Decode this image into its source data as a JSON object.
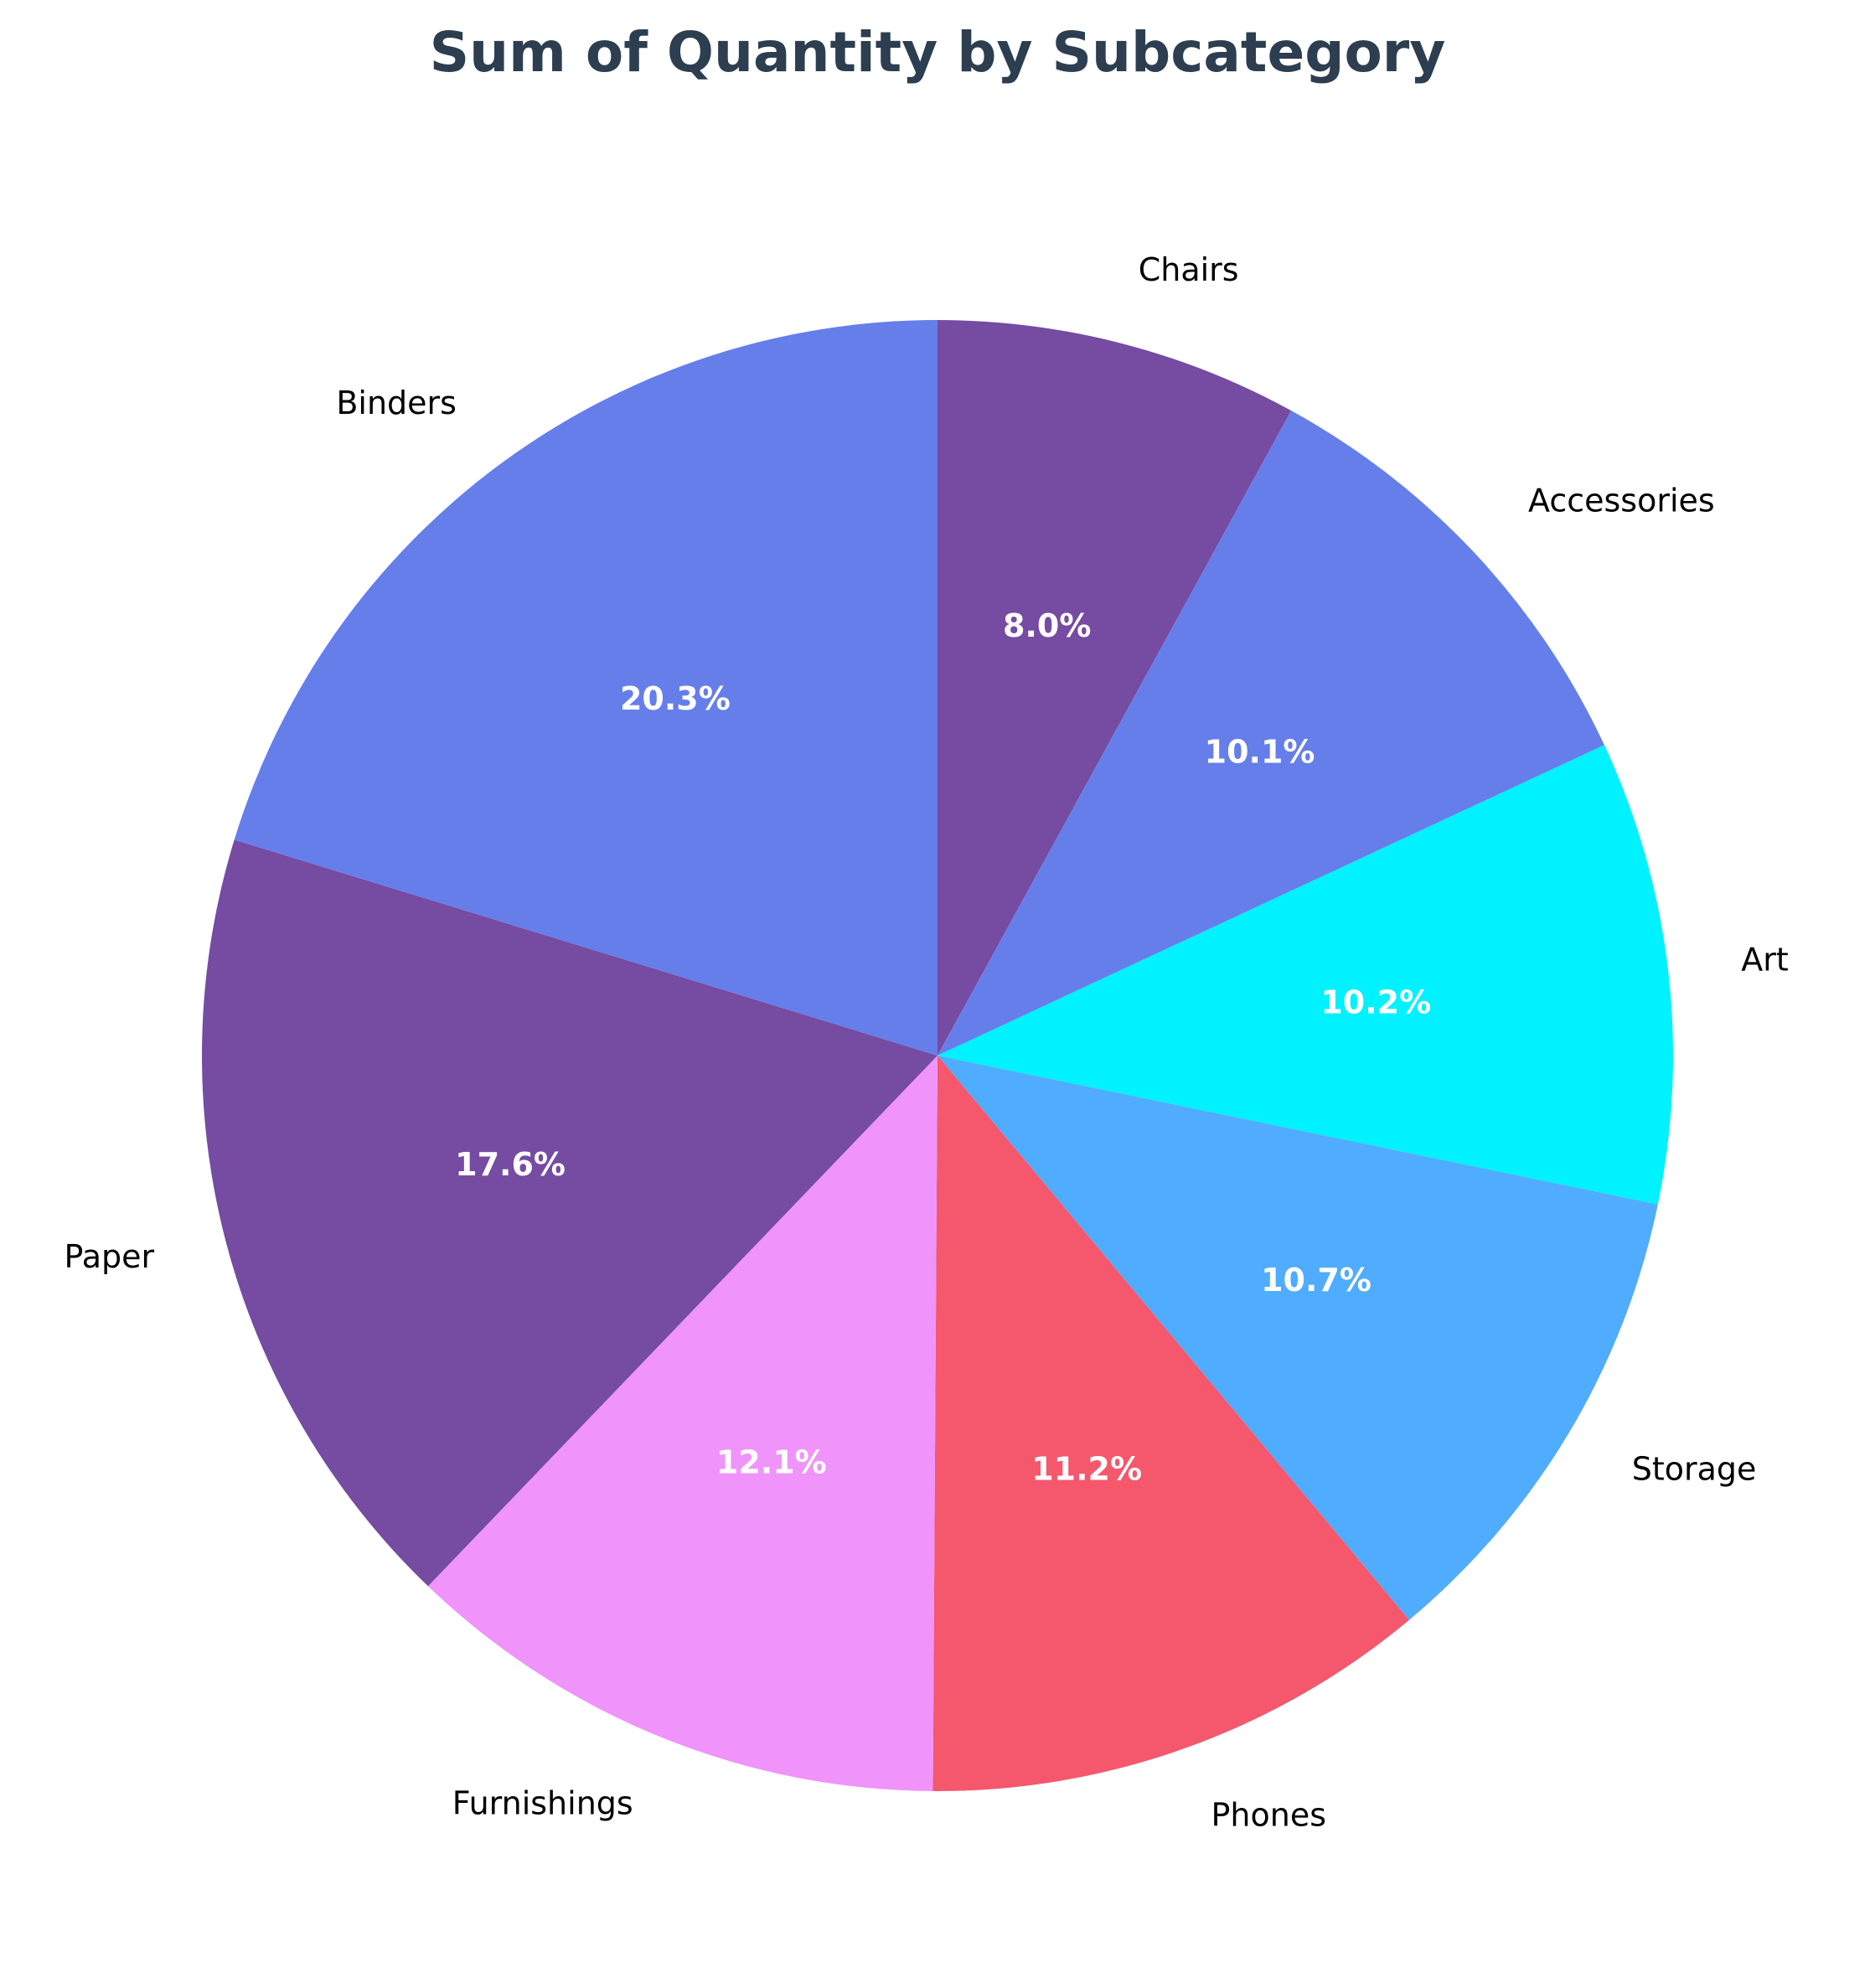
{
  "chart_data": {
    "type": "pie",
    "title": "Sum of Quantity by Subcategory",
    "start_angle_deg": 90,
    "direction": "clockwise",
    "slices": [
      {
        "label": "Chairs",
        "percent": 8.0,
        "percent_label": "8.0%",
        "color": "#764ba2"
      },
      {
        "label": "Accessories",
        "percent": 10.1,
        "percent_label": "10.1%",
        "color": "#667eea"
      },
      {
        "label": "Art",
        "percent": 10.2,
        "percent_label": "10.2%",
        "color": "#00f2fe"
      },
      {
        "label": "Storage",
        "percent": 10.7,
        "percent_label": "10.7%",
        "color": "#4facfe"
      },
      {
        "label": "Phones",
        "percent": 11.2,
        "percent_label": "11.2%",
        "color": "#f5576c"
      },
      {
        "label": "Furnishings",
        "percent": 12.1,
        "percent_label": "12.1%",
        "color": "#f093fb"
      },
      {
        "label": "Paper",
        "percent": 17.6,
        "percent_label": "17.6%",
        "color": "#764ba2"
      },
      {
        "label": "Binders",
        "percent": 20.3,
        "percent_label": "20.3%",
        "color": "#667eea"
      }
    ]
  }
}
